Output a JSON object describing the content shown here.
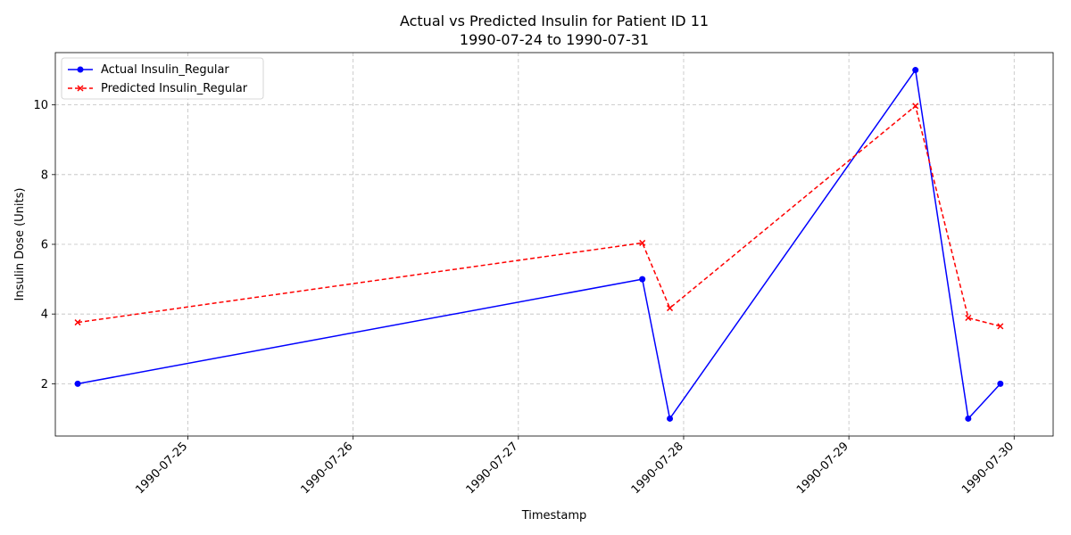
{
  "chart_data": {
    "type": "line",
    "title": "Actual vs Predicted Insulin for Patient ID 11",
    "subtitle": "1990-07-24 to 1990-07-31",
    "xlabel": "Timestamp",
    "ylabel": "Insulin Dose (Units)",
    "x_tick_labels": [
      "1990-07-25",
      "1990-07-26",
      "1990-07-27",
      "1990-07-28",
      "1990-07-29",
      "1990-07-30"
    ],
    "x_ticks": [
      "1990-07-25 00:00",
      "1990-07-26 00:00",
      "1990-07-27 00:00",
      "1990-07-28 00:00",
      "1990-07-29 00:00",
      "1990-07-30 00:00"
    ],
    "xlim": [
      "1990-07-24 04:45",
      "1990-07-30 05:40"
    ],
    "y_ticks": [
      2,
      4,
      6,
      8,
      10
    ],
    "ylim": [
      0.5,
      11.5
    ],
    "grid": true,
    "legend_position": "upper-left",
    "series": [
      {
        "name": "Actual Insulin_Regular",
        "color": "#0000ff",
        "line_style": "solid",
        "marker": "circle",
        "points": [
          {
            "x": "1990-07-24 08:00",
            "y": 2
          },
          {
            "x": "1990-07-27 18:00",
            "y": 5
          },
          {
            "x": "1990-07-27 22:00",
            "y": 1
          },
          {
            "x": "1990-07-29 09:40",
            "y": 11
          },
          {
            "x": "1990-07-29 17:20",
            "y": 1
          },
          {
            "x": "1990-07-29 22:00",
            "y": 2
          }
        ]
      },
      {
        "name": "Predicted Insulin_Regular",
        "color": "#ff0000",
        "line_style": "dashed",
        "marker": "x",
        "points": [
          {
            "x": "1990-07-24 08:00",
            "y": 3.76
          },
          {
            "x": "1990-07-27 18:00",
            "y": 6.04
          },
          {
            "x": "1990-07-27 22:00",
            "y": 4.17
          },
          {
            "x": "1990-07-29 09:40",
            "y": 9.97
          },
          {
            "x": "1990-07-29 17:20",
            "y": 3.89
          },
          {
            "x": "1990-07-29 22:00",
            "y": 3.65
          }
        ]
      }
    ]
  }
}
